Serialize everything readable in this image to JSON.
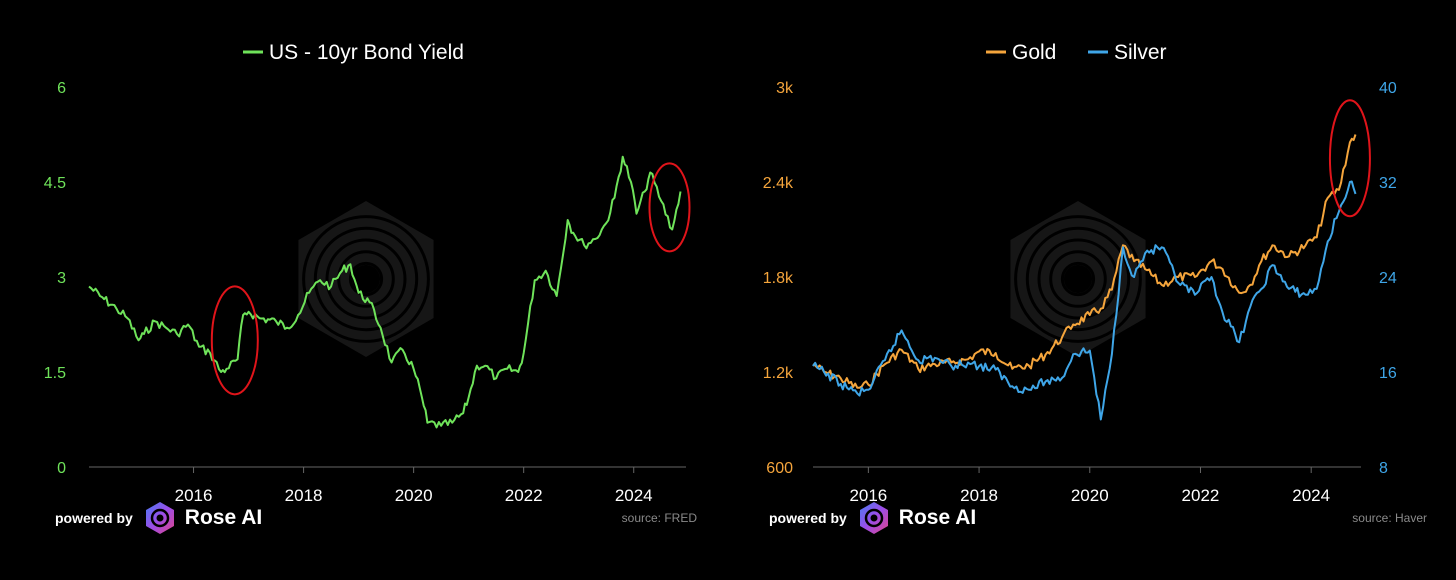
{
  "footer": {
    "powered_by": "powered by",
    "brand": "Rose AI",
    "source_left": "source: FRED",
    "source_right": "source: Haver"
  },
  "colors": {
    "bond": "#6fe35a",
    "gold": "#f5a53c",
    "silver": "#3fa6e8",
    "axis": "#666666",
    "annotation": "#e0141a"
  },
  "chart_data": [
    {
      "type": "line",
      "legend_position": "top",
      "x_ticks": [
        "2016",
        "2018",
        "2020",
        "2022",
        "2024"
      ],
      "x_range": [
        2014.1,
        2024.95
      ],
      "y_ticks": [
        "0",
        "1.5",
        "3",
        "4.5",
        "6"
      ],
      "ylim": [
        0,
        6
      ],
      "grid": false,
      "series": [
        {
          "name": "US - 10yr Bond Yield",
          "color": "#6fe35a",
          "axis": "left",
          "x": [
            2014.1,
            2014.3,
            2014.6,
            2014.8,
            2015.0,
            2015.1,
            2015.3,
            2015.5,
            2015.7,
            2015.9,
            2016.1,
            2016.3,
            2016.5,
            2016.6,
            2016.8,
            2016.9,
            2017.0,
            2017.2,
            2017.5,
            2017.7,
            2017.9,
            2018.1,
            2018.3,
            2018.5,
            2018.7,
            2018.85,
            2019.0,
            2019.2,
            2019.4,
            2019.6,
            2019.8,
            2020.0,
            2020.15,
            2020.25,
            2020.5,
            2020.7,
            2020.9,
            2021.0,
            2021.15,
            2021.3,
            2021.5,
            2021.7,
            2021.9,
            2022.0,
            2022.2,
            2022.4,
            2022.6,
            2022.8,
            2022.9,
            2023.1,
            2023.3,
            2023.5,
            2023.65,
            2023.8,
            2023.95,
            2024.05,
            2024.2,
            2024.3,
            2024.5,
            2024.7,
            2024.85
          ],
          "values": [
            2.85,
            2.7,
            2.5,
            2.35,
            2.0,
            2.1,
            2.3,
            2.2,
            2.1,
            2.25,
            1.9,
            1.8,
            1.5,
            1.55,
            1.7,
            2.4,
            2.45,
            2.35,
            2.3,
            2.2,
            2.4,
            2.75,
            2.95,
            2.85,
            3.1,
            3.2,
            2.75,
            2.6,
            2.2,
            1.65,
            1.85,
            1.55,
            1.1,
            0.7,
            0.65,
            0.7,
            0.85,
            1.1,
            1.6,
            1.6,
            1.4,
            1.55,
            1.5,
            1.8,
            2.95,
            3.1,
            2.7,
            3.9,
            3.7,
            3.5,
            3.6,
            3.85,
            4.25,
            4.9,
            4.5,
            4.0,
            4.35,
            4.65,
            4.2,
            3.75,
            4.35
          ]
        }
      ],
      "annotations": [
        {
          "label": "",
          "x": 2016.75,
          "y": 2.0
        },
        {
          "label": "",
          "x": 2024.65,
          "y": 4.1
        }
      ]
    },
    {
      "type": "line",
      "legend_position": "top",
      "x_ticks": [
        "2016",
        "2018",
        "2020",
        "2022",
        "2024"
      ],
      "x_range": [
        2015.0,
        2024.9
      ],
      "y_ticks_left": [
        "600",
        "1.2k",
        "1.8k",
        "2.4k",
        "3k"
      ],
      "ylim_left": [
        600,
        3000
      ],
      "y_ticks_right": [
        "8",
        "16",
        "24",
        "32",
        "40"
      ],
      "ylim_right": [
        8,
        40
      ],
      "grid": false,
      "series": [
        {
          "name": "Gold",
          "color": "#f5a53c",
          "axis": "left",
          "x": [
            2015.0,
            2015.2,
            2015.5,
            2015.8,
            2016.0,
            2016.3,
            2016.6,
            2016.9,
            2017.2,
            2017.5,
            2017.8,
            2018.0,
            2018.3,
            2018.6,
            2018.9,
            2019.2,
            2019.5,
            2019.7,
            2020.0,
            2020.2,
            2020.4,
            2020.6,
            2020.8,
            2021.0,
            2021.3,
            2021.6,
            2021.9,
            2022.2,
            2022.4,
            2022.7,
            2022.9,
            2023.1,
            2023.3,
            2023.6,
            2023.9,
            2024.1,
            2024.3,
            2024.5,
            2024.7,
            2024.8
          ],
          "values": [
            1250,
            1200,
            1160,
            1100,
            1120,
            1250,
            1340,
            1220,
            1250,
            1260,
            1280,
            1330,
            1320,
            1220,
            1240,
            1310,
            1420,
            1500,
            1560,
            1600,
            1720,
            2000,
            1900,
            1850,
            1750,
            1800,
            1800,
            1900,
            1850,
            1700,
            1750,
            1900,
            2000,
            1930,
            2000,
            2050,
            2300,
            2350,
            2650,
            2700
          ]
        },
        {
          "name": "Silver",
          "color": "#3fa6e8",
          "axis": "right",
          "x": [
            2015.0,
            2015.2,
            2015.5,
            2015.8,
            2016.0,
            2016.3,
            2016.6,
            2016.9,
            2017.2,
            2017.5,
            2017.8,
            2018.0,
            2018.3,
            2018.6,
            2018.9,
            2019.2,
            2019.5,
            2019.7,
            2020.0,
            2020.2,
            2020.4,
            2020.6,
            2020.8,
            2021.0,
            2021.3,
            2021.6,
            2021.9,
            2022.2,
            2022.4,
            2022.7,
            2022.9,
            2023.1,
            2023.3,
            2023.6,
            2023.9,
            2024.1,
            2024.3,
            2024.5,
            2024.7,
            2024.8
          ],
          "values": [
            16.5,
            16.0,
            15.0,
            14.2,
            14.5,
            17.0,
            19.5,
            17.0,
            17.2,
            16.5,
            16.8,
            16.5,
            16.2,
            14.8,
            14.5,
            15.2,
            15.5,
            17.5,
            17.8,
            12.0,
            17.5,
            26.5,
            24.0,
            26.0,
            26.5,
            23.5,
            22.5,
            24.0,
            21.0,
            18.5,
            21.5,
            23.0,
            25.0,
            23.0,
            22.5,
            23.0,
            27.0,
            29.5,
            32.0,
            31.0
          ]
        }
      ],
      "annotations": [
        {
          "label": "",
          "x": 2024.7,
          "y": 2550
        }
      ]
    }
  ]
}
